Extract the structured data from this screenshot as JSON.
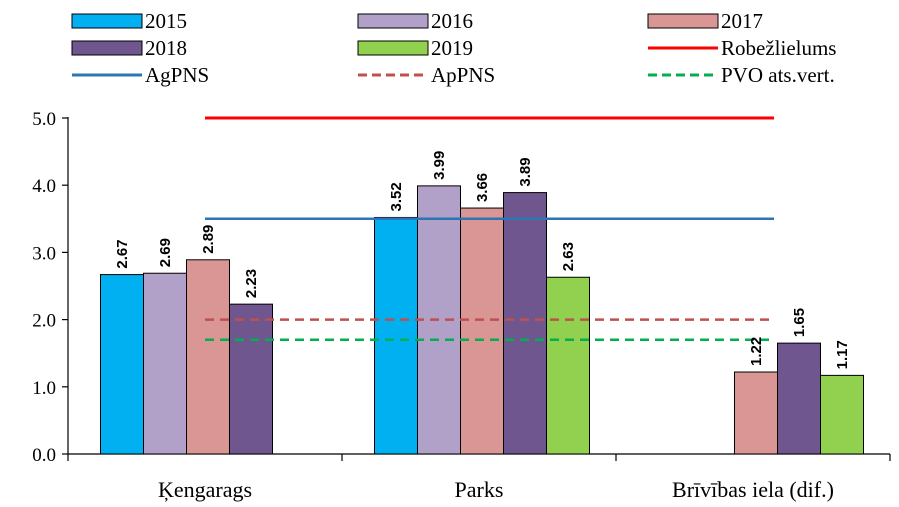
{
  "chart_data": {
    "type": "bar",
    "categories": [
      "Ķengarags",
      "Parks",
      "Brīvības iela (dif.)"
    ],
    "series": [
      {
        "name": "2015",
        "color": "#00b0f0",
        "values": [
          2.67,
          3.52,
          null
        ]
      },
      {
        "name": "2016",
        "color": "#b1a0c7",
        "values": [
          2.69,
          3.99,
          null
        ]
      },
      {
        "name": "2017",
        "color": "#da9694",
        "values": [
          2.89,
          3.66,
          1.22
        ]
      },
      {
        "name": "2018",
        "color": "#70568f",
        "values": [
          2.23,
          3.89,
          1.65
        ]
      },
      {
        "name": "2019",
        "color": "#92d050",
        "values": [
          null,
          2.63,
          1.17
        ]
      }
    ],
    "data_labels": [
      [
        "2.67",
        "3.52",
        null
      ],
      [
        "2.69",
        "3.99",
        null
      ],
      [
        "2.89",
        "3.66",
        "1.22"
      ],
      [
        "2.23",
        "3.89",
        "1.65"
      ],
      [
        null,
        "2.63",
        "1.17"
      ]
    ],
    "reference_lines": [
      {
        "name": "Robežlielums",
        "value": 5.0,
        "color": "#ff0000",
        "style": "solid"
      },
      {
        "name": "AgPNS",
        "value": 3.5,
        "color": "#2e75b6",
        "style": "solid"
      },
      {
        "name": "ApPNS",
        "value": 2.0,
        "color": "#c0504d",
        "style": "dashed"
      },
      {
        "name": "PVO ats.vert.",
        "value": 1.7,
        "color": "#00b050",
        "style": "dashed"
      }
    ],
    "ylim": [
      0,
      5
    ],
    "yticks": [
      "0.0",
      "1.0",
      "2.0",
      "3.0",
      "4.0",
      "5.0"
    ],
    "legend_position": "top",
    "grid": false
  }
}
